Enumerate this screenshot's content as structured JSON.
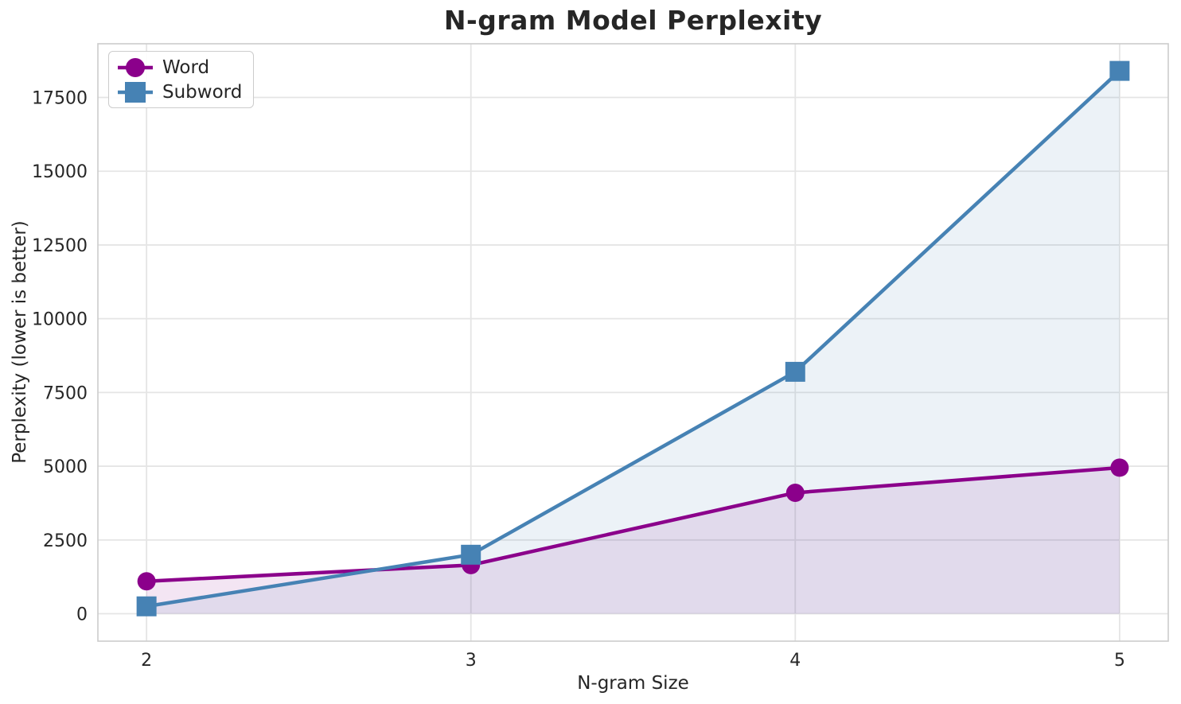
{
  "chart_data": {
    "type": "line",
    "title": "N-gram Model Perplexity",
    "xlabel": "N-gram Size",
    "ylabel": "Perplexity (lower is better)",
    "x": [
      2,
      3,
      4,
      5
    ],
    "xticks": [
      "2",
      "3",
      "4",
      "5"
    ],
    "yticks": [
      0,
      2500,
      5000,
      7500,
      10000,
      12500,
      15000,
      17500
    ],
    "xlim": [
      1.85,
      5.15
    ],
    "ylim": [
      -930,
      19320
    ],
    "grid": true,
    "legend_position": "upper-left",
    "area_fill_opacity": 0.1,
    "series": [
      {
        "name": "Word",
        "marker": "circle",
        "color": "#8B008B",
        "values": [
          1100,
          1650,
          4100,
          4950
        ]
      },
      {
        "name": "Subword",
        "marker": "square",
        "color": "#4682B4",
        "values": [
          250,
          2000,
          8200,
          18400
        ]
      }
    ]
  },
  "colors": {
    "background": "#FFFFFF",
    "grid": "#E5E5E5",
    "spine": "#CCCCCC",
    "text": "#262626"
  }
}
